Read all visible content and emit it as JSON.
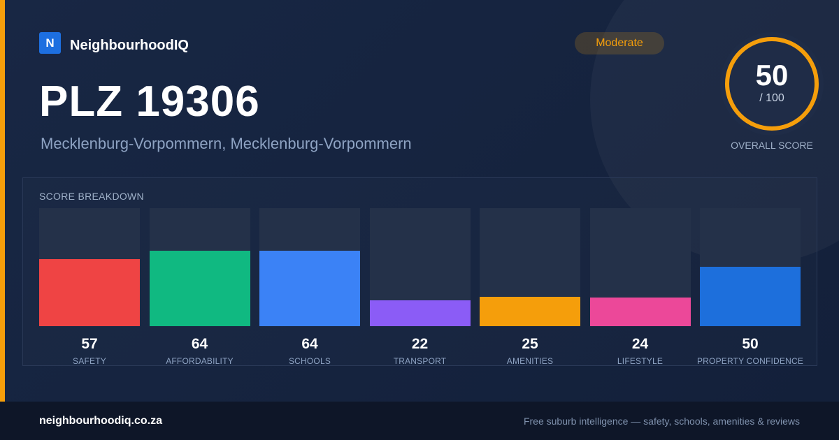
{
  "brand": {
    "logo_letter": "N",
    "name": "NeighbourhoodIQ"
  },
  "header": {
    "title": "PLZ 19306",
    "subtitle": "Mecklenburg-Vorpommern, Mecklenburg-Vorpommern"
  },
  "badge": {
    "label": "Moderate",
    "color": "#f59e0b"
  },
  "overall": {
    "score": 50,
    "max_label": "/ 100",
    "max": 100,
    "label": "OVERALL SCORE",
    "ring_color": "#f59e0b",
    "track_color": "#2a3752"
  },
  "breakdown": {
    "title": "SCORE BREAKDOWN",
    "items": [
      {
        "label": "SAFETY",
        "value": 57,
        "color": "#ef4444"
      },
      {
        "label": "AFFORDABILITY",
        "value": 64,
        "color": "#10b981"
      },
      {
        "label": "SCHOOLS",
        "value": 64,
        "color": "#3b82f6"
      },
      {
        "label": "TRANSPORT",
        "value": 22,
        "color": "#8b5cf6"
      },
      {
        "label": "AMENITIES",
        "value": 25,
        "color": "#f59e0b"
      },
      {
        "label": "LIFESTYLE",
        "value": 24,
        "color": "#ec4899"
      },
      {
        "label": "PROPERTY CONFIDENCE",
        "value": 50,
        "color": "#1d6fdc"
      }
    ]
  },
  "footer": {
    "domain": "neighbourhoodiq.co.za",
    "tagline": "Free suburb intelligence — safety, schools, amenities & reviews"
  }
}
